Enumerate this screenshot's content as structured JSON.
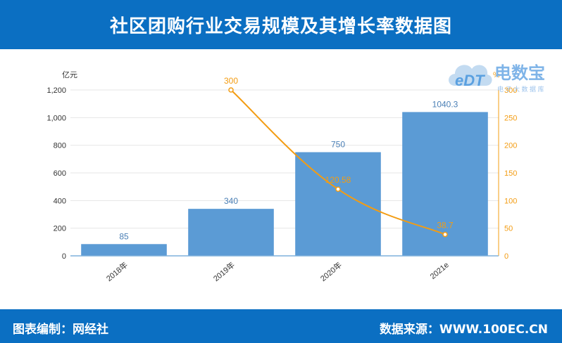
{
  "header": {
    "title": "社区团购行业交易规模及其增长率数据图"
  },
  "footer": {
    "left": "图表编制：网经社",
    "right": "数据来源：WWW.100EC.CN"
  },
  "watermark": {
    "logo_text": "eDT",
    "brand": "电数宝",
    "sub": "电 子 大 数 据 库"
  },
  "colors": {
    "brand": "#0b6fc2",
    "bar": "#5b9bd5",
    "line": "#f39c12",
    "bar_label": "#4a7fb5"
  },
  "chart_data": {
    "type": "bar",
    "categories": [
      "2018年",
      "2019年",
      "2020年",
      "2021e"
    ],
    "series": [
      {
        "type": "bar",
        "axis": "left",
        "values": [
          85,
          340,
          750,
          1040.3
        ],
        "labels": [
          "85",
          "340",
          "750",
          "1040.3"
        ]
      },
      {
        "type": "line",
        "axis": "right",
        "values": [
          null,
          300,
          120.58,
          38.7
        ],
        "labels": [
          "",
          "300",
          "120.58",
          "38.7"
        ]
      }
    ],
    "y_left": {
      "unit": "亿元",
      "ylim": [
        0,
        1200
      ],
      "ticks": [
        "0",
        "200",
        "400",
        "600",
        "800",
        "1,000",
        "1,200"
      ]
    },
    "y_right": {
      "unit": "%",
      "ylim": [
        0,
        300
      ],
      "ticks": [
        "0",
        "50",
        "100",
        "150",
        "200",
        "250",
        "300"
      ]
    },
    "grid": true,
    "legend": "none"
  }
}
